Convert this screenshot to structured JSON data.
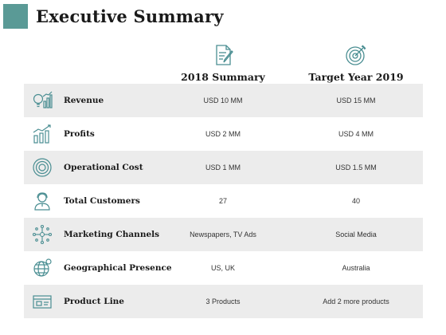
{
  "title": "Executive Summary",
  "colors": {
    "accent": "#5a9a96",
    "icon": "#4a8e92",
    "row_shade": "#ececec"
  },
  "columns": [
    {
      "label": "2018 Summary",
      "icon": "document-edit-icon"
    },
    {
      "label": "Target Year 2019",
      "icon": "target-icon"
    }
  ],
  "rows": [
    {
      "label": "Revenue",
      "icon": "bulb-chart-icon",
      "summary_2018": "USD 10 MM",
      "target_2019": "USD 15 MM"
    },
    {
      "label": "Profits",
      "icon": "growth-chart-icon",
      "summary_2018": "USD 2 MM",
      "target_2019": "USD 4 MM"
    },
    {
      "label": "Operational Cost",
      "icon": "circle-cost-icon",
      "summary_2018": "USD 1 MM",
      "target_2019": "USD 1.5 MM"
    },
    {
      "label": "Total Customers",
      "icon": "customer-icon",
      "summary_2018": "27",
      "target_2019": "40"
    },
    {
      "label": "Marketing Channels",
      "icon": "network-icon",
      "summary_2018": "Newspapers, TV Ads",
      "target_2019": "Social Media"
    },
    {
      "label": "Geographical Presence",
      "icon": "globe-icon",
      "summary_2018": "US, UK",
      "target_2019": "Australia"
    },
    {
      "label": "Product Line",
      "icon": "product-box-icon",
      "summary_2018": "3 Products",
      "target_2019": "Add 2 more products"
    }
  ]
}
